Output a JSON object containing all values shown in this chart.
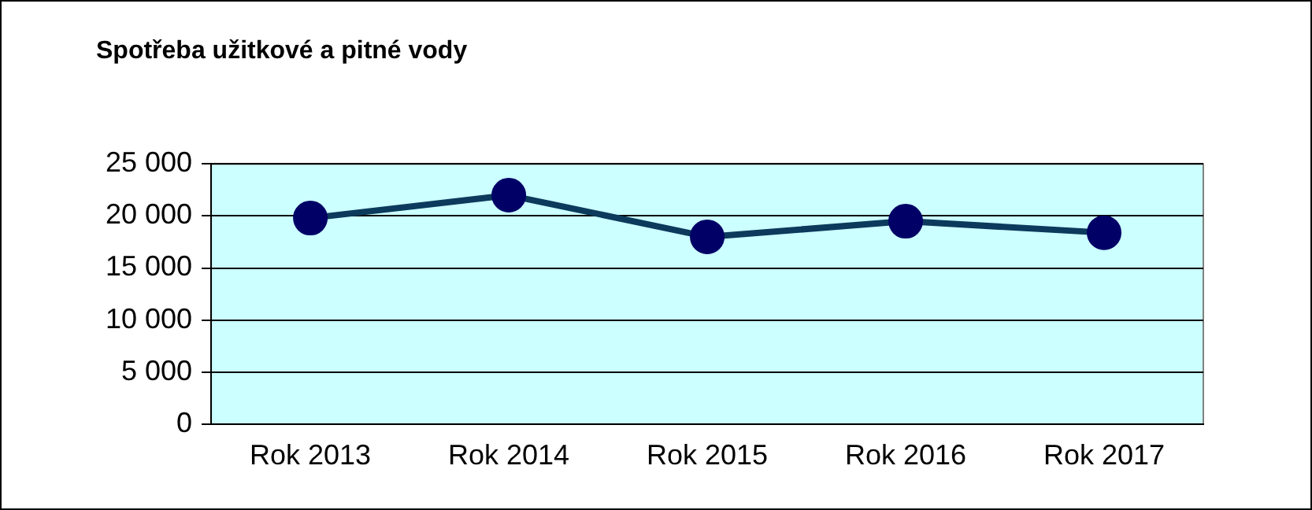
{
  "chart_data": {
    "type": "line",
    "title": "Spotřeba užitkové a pitné vody",
    "categories": [
      "Rok 2013",
      "Rok 2014",
      "Rok 2015",
      "Rok 2016",
      "Rok 2017"
    ],
    "series": [
      {
        "color": "#0b3a5c",
        "values": [
          19800,
          22000,
          18000,
          19500,
          18400
        ]
      }
    ],
    "ylim": [
      0,
      25000
    ],
    "yticks": [
      {
        "value": 0,
        "label": "0"
      },
      {
        "value": 5000,
        "label": "5 000"
      },
      {
        "value": 10000,
        "label": "10 000"
      },
      {
        "value": 15000,
        "label": "15 000"
      },
      {
        "value": 20000,
        "label": "20 000"
      },
      {
        "value": 25000,
        "label": "25 000"
      }
    ],
    "grid": "y",
    "legend": false,
    "marker": "circle",
    "line_style": "solid"
  }
}
